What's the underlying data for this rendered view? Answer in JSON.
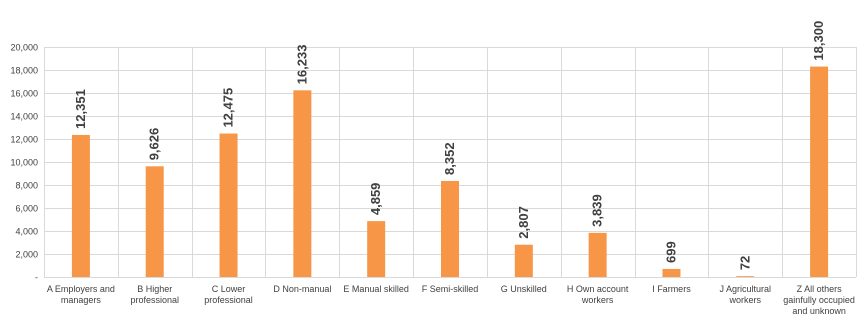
{
  "chart_data": {
    "type": "bar",
    "categories": [
      [
        "A Employers and",
        "managers"
      ],
      [
        "B Higher",
        "professional"
      ],
      [
        "C Lower",
        "professional"
      ],
      [
        "D Non-manual"
      ],
      [
        "E Manual skilled"
      ],
      [
        "F Semi-skilled"
      ],
      [
        "G Unskilled"
      ],
      [
        "H Own account",
        "workers"
      ],
      [
        "I Farmers"
      ],
      [
        "J Agricultural",
        "workers"
      ],
      [
        "Z All others",
        "gainfully occupied",
        "and unknown"
      ]
    ],
    "values": [
      12351,
      9626,
      12475,
      16233,
      4859,
      8352,
      2807,
      3839,
      699,
      72,
      18300
    ],
    "data_labels": [
      "12,351",
      "9,626",
      "12,475",
      "16,233",
      "4,859",
      "8,352",
      "2,807",
      "3,839",
      "699",
      "72",
      "18,300"
    ],
    "y_ticks": [
      0,
      2000,
      4000,
      6000,
      8000,
      10000,
      12000,
      14000,
      16000,
      18000,
      20000
    ],
    "y_tick_labels": [
      "-",
      "2,000",
      "4,000",
      "6,000",
      "8,000",
      "10,000",
      "12,000",
      "14,000",
      "16,000",
      "18,000",
      "20,000"
    ],
    "ylim": [
      0,
      20000
    ],
    "title": "",
    "xlabel": "",
    "ylabel": "",
    "grid": true,
    "colors": {
      "bar": "#F79646",
      "grid": "#D9D9D9",
      "text": "#404040"
    }
  }
}
